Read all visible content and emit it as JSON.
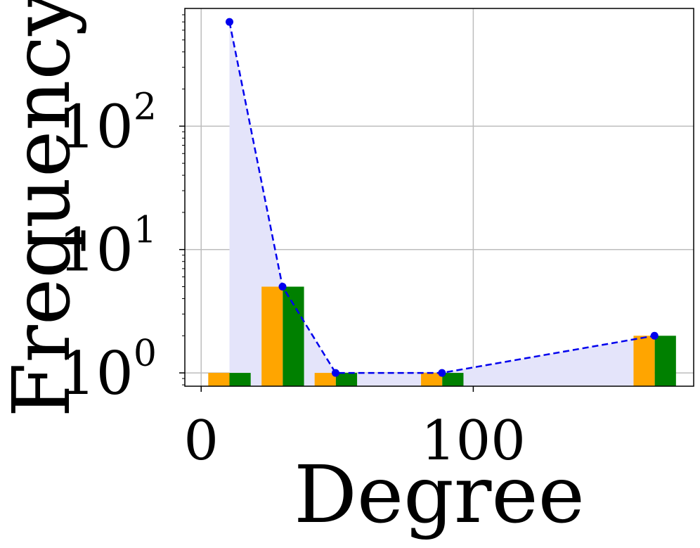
{
  "chart_data": {
    "type": "bar",
    "xlabel": "Degree",
    "ylabel": "Frequency",
    "yscale": "log",
    "xlim": [
      -6,
      181
    ],
    "ylim": [
      0.78,
      900
    ],
    "grid": true,
    "xticks": [
      {
        "value": 0,
        "label": "0"
      },
      {
        "value": 100,
        "label": "100"
      }
    ],
    "yticks": [
      {
        "value": 1,
        "base": "10",
        "exp": "0"
      },
      {
        "value": 10,
        "base": "10",
        "exp": "1"
      },
      {
        "value": 100,
        "base": "10",
        "exp": "2"
      }
    ],
    "bar_groups": [
      {
        "x_left": 2.6,
        "x_right": 18.2,
        "values": [
          1,
          1
        ]
      },
      {
        "x_left": 22.2,
        "x_right": 37.8,
        "values": [
          5,
          5
        ]
      },
      {
        "x_left": 41.7,
        "x_right": 57.3,
        "values": [
          1,
          1
        ]
      },
      {
        "x_left": 80.8,
        "x_right": 96.4,
        "values": [
          1,
          1
        ]
      },
      {
        "x_left": 158.9,
        "x_right": 174.5,
        "values": [
          2,
          2
        ]
      }
    ],
    "line": {
      "x": [
        10.4,
        29.9,
        49.4,
        88.5,
        166.6
      ],
      "values": [
        700,
        5,
        1,
        1,
        2
      ]
    },
    "colors": {
      "bar_a": "#FFA500",
      "bar_b": "#008000",
      "line": "#0000EE",
      "fill": "#E4E4FA",
      "grid": "#BDBDBD"
    }
  }
}
